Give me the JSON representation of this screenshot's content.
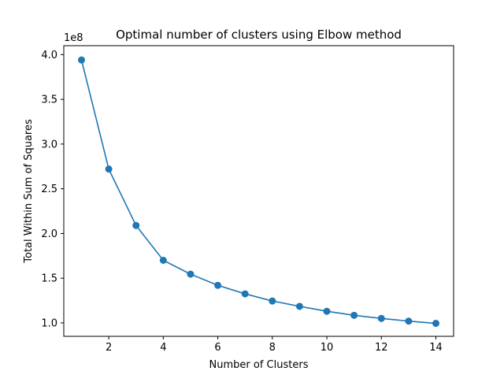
{
  "chart_data": {
    "type": "line",
    "title": "Optimal number of clusters using Elbow method",
    "xlabel": "Number of Clusters",
    "ylabel": "Total Within Sum of Squares",
    "y_offset_label": "1e8",
    "xlim": [
      0.35,
      14.65
    ],
    "ylim": [
      0.85,
      4.1
    ],
    "x_ticks": [
      2,
      4,
      6,
      8,
      10,
      12,
      14
    ],
    "x_tick_labels": [
      "2",
      "4",
      "6",
      "8",
      "10",
      "12",
      "14"
    ],
    "y_ticks": [
      1.0,
      1.5,
      2.0,
      2.5,
      3.0,
      3.5,
      4.0
    ],
    "y_tick_labels": [
      "1.0",
      "1.5",
      "2.0",
      "2.5",
      "3.0",
      "3.5",
      "4.0"
    ],
    "grid": false,
    "series": [
      {
        "color": "#1f77b4",
        "marker": "circle",
        "x": [
          1,
          2,
          3,
          4,
          5,
          6,
          7,
          8,
          9,
          10,
          11,
          12,
          13,
          14
        ],
        "y": [
          3.94,
          2.72,
          2.09,
          1.7,
          1.545,
          1.42,
          1.325,
          1.245,
          1.185,
          1.13,
          1.085,
          1.05,
          1.02,
          0.995
        ]
      }
    ]
  }
}
